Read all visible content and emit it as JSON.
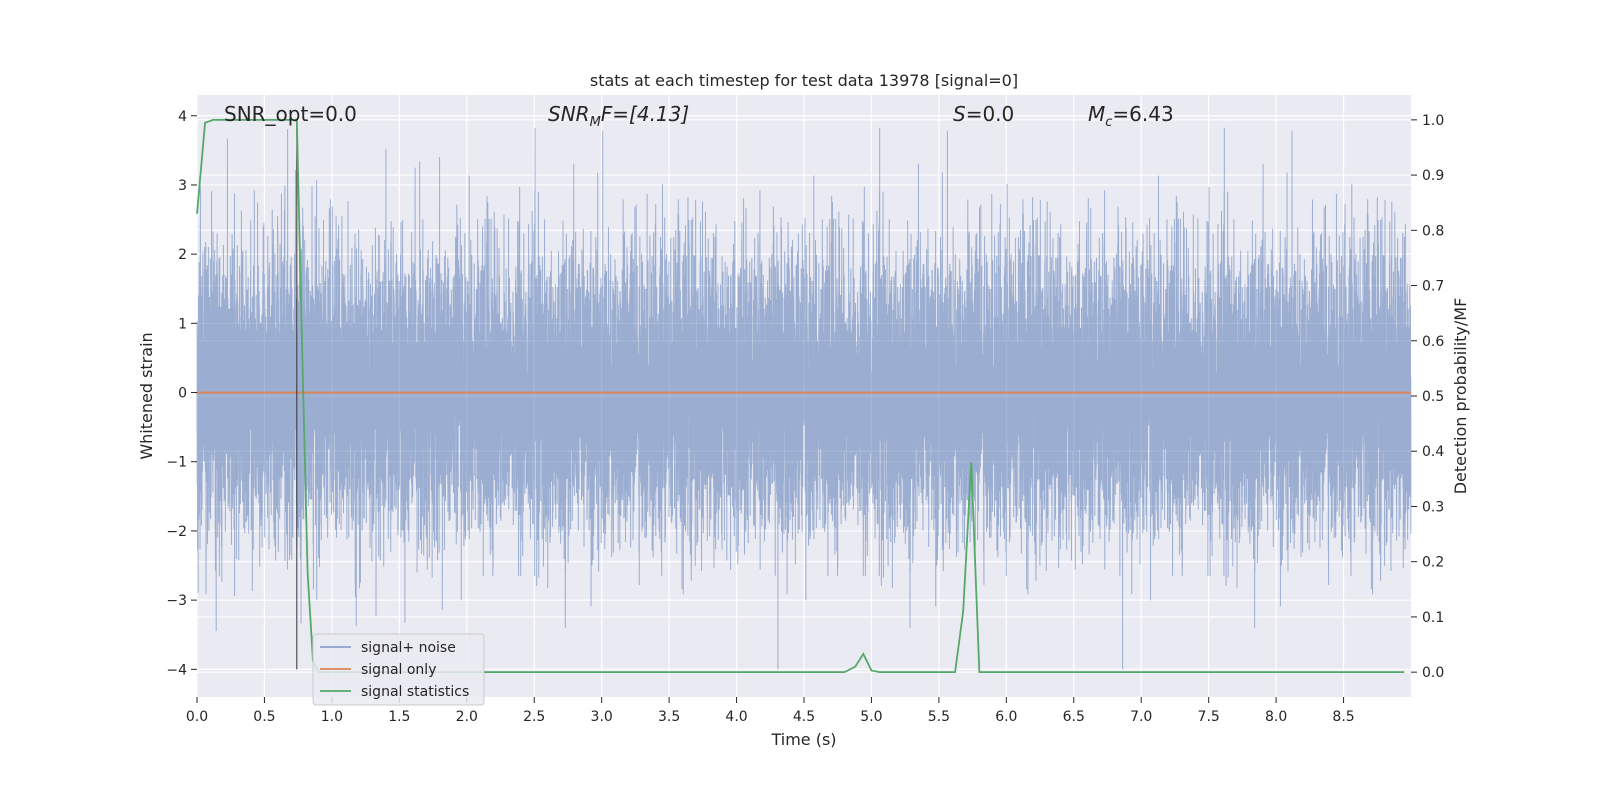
{
  "chart_data": {
    "type": "line",
    "title": "stats at each timestep for test data 13978 [signal=0]",
    "xlabel": "Time (s)",
    "ylabel_left": "Whitened strain",
    "ylabel_right": "Detection probability/MF",
    "xlim": [
      0.0,
      9.0
    ],
    "ylim_left": [
      -4.4,
      4.3
    ],
    "ylim_right": [
      -0.045,
      1.045
    ],
    "xticks": [
      "0.0",
      "0.5",
      "1.0",
      "1.5",
      "2.0",
      "2.5",
      "3.0",
      "3.5",
      "4.0",
      "4.5",
      "5.0",
      "5.5",
      "6.0",
      "6.5",
      "7.0",
      "7.5",
      "8.0",
      "8.5"
    ],
    "yticks_left": [
      "4",
      "3",
      "2",
      "1",
      "0",
      "−1",
      "−2",
      "−3",
      "−4"
    ],
    "yticks_right": [
      "1.0",
      "0.9",
      "0.8",
      "0.7",
      "0.6",
      "0.5",
      "0.4",
      "0.3",
      "0.2",
      "0.1",
      "0.0"
    ],
    "grid": true,
    "legend_placement": "lower-left",
    "annotations": {
      "snr_opt": "SNR_opt=0.0",
      "snr_mf_base": "SNR",
      "snr_mf_sub": "M",
      "snr_mf_tail": "F=[4.13]",
      "s_label": "S",
      "s_value": "=0.0",
      "mc_base": "M",
      "mc_sub": "c",
      "mc_value": "=6.43"
    },
    "marker_line_x": 0.74,
    "series": [
      {
        "name": "signal+ noise",
        "color": "#4c72b0",
        "axis": "left",
        "description_type": "noise",
        "duration": 9.0,
        "sample_rate": 2048,
        "envelope_max": 4.0
      },
      {
        "name": "signal only",
        "color": "#dd8452",
        "axis": "left",
        "x": [
          0.0,
          9.0
        ],
        "y": [
          0.0,
          0.0
        ]
      },
      {
        "name": "signal statistics",
        "color": "#55a868",
        "axis": "right",
        "x": [
          0.0,
          0.06,
          0.12,
          0.18,
          0.25,
          0.5,
          0.68,
          0.72,
          0.74,
          0.78,
          0.82,
          0.86,
          0.9,
          1.0,
          2.0,
          3.0,
          4.0,
          4.5,
          4.8,
          4.88,
          4.94,
          5.0,
          5.06,
          5.12,
          5.5,
          5.62,
          5.68,
          5.74,
          5.8,
          5.86,
          6.0,
          7.0,
          8.0,
          8.95
        ],
        "y": [
          0.83,
          0.995,
          1.0,
          1.0,
          1.0,
          1.0,
          1.0,
          1.0,
          1.0,
          0.58,
          0.18,
          0.02,
          0.0,
          0.0,
          0.0,
          0.0,
          0.0,
          0.0,
          0.0,
          0.01,
          0.033,
          0.003,
          0.0,
          0.0,
          0.0,
          0.0,
          0.11,
          0.38,
          0.0,
          0.0,
          0.0,
          0.0,
          0.0,
          0.0
        ]
      }
    ]
  }
}
